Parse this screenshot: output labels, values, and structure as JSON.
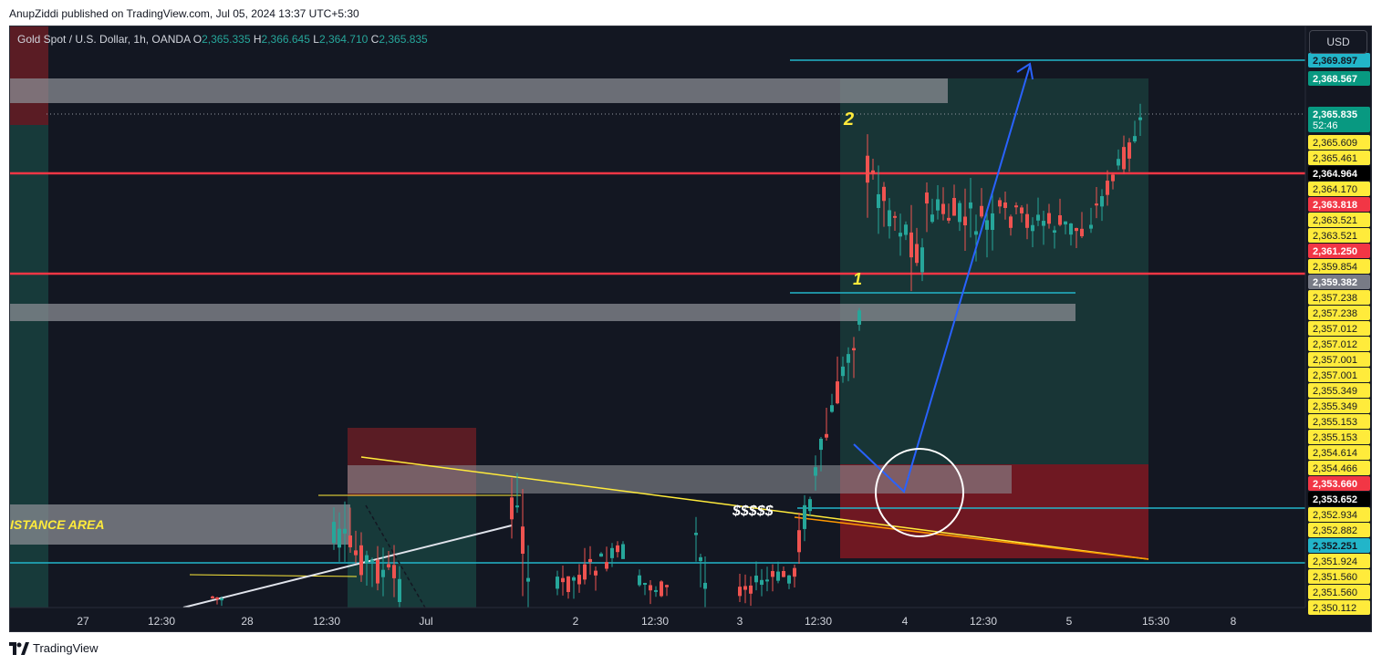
{
  "header": {
    "published": "AnupZiddi published on TradingView.com, Jul 05, 2024 13:37 UTC+5:30"
  },
  "legend": {
    "symbol": "Gold Spot / U.S. Dollar, 1h, OANDA",
    "o_label": "O",
    "o": "2,365.335",
    "h_label": "H",
    "h": "2,366.645",
    "l_label": "L",
    "l": "2,364.710",
    "c_label": "C",
    "c": "2,365.835"
  },
  "currency_button": "USD",
  "annotations": {
    "label_1": "1",
    "label_2": "2",
    "dollars": "$$$$$",
    "resistance": "ISTANCE AREA"
  },
  "colors": {
    "background": "#131722",
    "bull": "#26a69a",
    "bear": "#ef5350",
    "red_line": "#f23645",
    "cyan_line": "#22b5c9",
    "yellow_label": "#ffeb3b",
    "arrow_blue": "#2962ff"
  },
  "price_labels": [
    {
      "text": "2,369.897",
      "price": 2369.897,
      "style": "cyan"
    },
    {
      "text": "2,368.567",
      "price": 2368.567,
      "style": "teal"
    },
    {
      "text": "2,365.835",
      "price": 2365.835,
      "style": "teal",
      "sub": "52:46"
    },
    {
      "text": "2,365.609",
      "price": 2365.4,
      "style": "yellow"
    },
    {
      "text": "2,365.461",
      "price": 2364.9,
      "style": "yellow"
    },
    {
      "text": "2,364.964",
      "price": 2364.4,
      "style": "black"
    },
    {
      "text": "2,364.170",
      "price": 2363.9,
      "style": "yellow"
    },
    {
      "text": "2,363.818",
      "price": 2363.4,
      "style": "red"
    },
    {
      "text": "2,363.521",
      "price": 2362.9,
      "style": "yellow"
    },
    {
      "text": "2,363.521",
      "price": 2362.4,
      "style": "yellow"
    },
    {
      "text": "2,361.250",
      "price": 2361.9,
      "style": "red"
    },
    {
      "text": "2,359.854",
      "price": 2361.4,
      "style": "yellow"
    },
    {
      "text": "2,359.382",
      "price": 2360.9,
      "style": "gray"
    },
    {
      "text": "2,357.238",
      "price": 2360.4,
      "style": "yellow"
    },
    {
      "text": "2,357.238",
      "price": 2359.9,
      "style": "yellow"
    },
    {
      "text": "2,357.012",
      "price": 2359.4,
      "style": "yellow"
    },
    {
      "text": "2,357.012",
      "price": 2358.9,
      "style": "yellow"
    },
    {
      "text": "2,357.001",
      "price": 2358.4,
      "style": "yellow"
    },
    {
      "text": "2,357.001",
      "price": 2357.9,
      "style": "yellow"
    },
    {
      "text": "2,355.349",
      "price": 2357.4,
      "style": "yellow"
    },
    {
      "text": "2,355.349",
      "price": 2356.9,
      "style": "yellow"
    },
    {
      "text": "2,355.153",
      "price": 2356.4,
      "style": "yellow"
    },
    {
      "text": "2,355.153",
      "price": 2355.9,
      "style": "yellow"
    },
    {
      "text": "2,354.614",
      "price": 2355.4,
      "style": "yellow"
    },
    {
      "text": "2,354.466",
      "price": 2354.9,
      "style": "yellow"
    },
    {
      "text": "2,353.660",
      "price": 2354.4,
      "style": "red"
    },
    {
      "text": "2,353.652",
      "price": 2353.9,
      "style": "black"
    },
    {
      "text": "2,352.934",
      "price": 2353.4,
      "style": "yellow"
    },
    {
      "text": "2,352.882",
      "price": 2352.9,
      "style": "yellow"
    },
    {
      "text": "2,352.251",
      "price": 2352.4,
      "style": "cyan"
    },
    {
      "text": "2,351.924",
      "price": 2351.9,
      "style": "yellow"
    },
    {
      "text": "2,351.560",
      "price": 2351.4,
      "style": "yellow"
    },
    {
      "text": "2,351.560",
      "price": 2350.9,
      "style": "yellow"
    },
    {
      "text": "2,350.112",
      "price": 2350.4,
      "style": "yellow"
    }
  ],
  "time_labels": [
    "27",
    "12:30",
    "28",
    "12:30",
    "Jul",
    "2",
    "12:30",
    "3",
    "12:30",
    "4",
    "12:30",
    "5",
    "15:30",
    "8"
  ],
  "footer": {
    "brand": "TradingView"
  }
}
